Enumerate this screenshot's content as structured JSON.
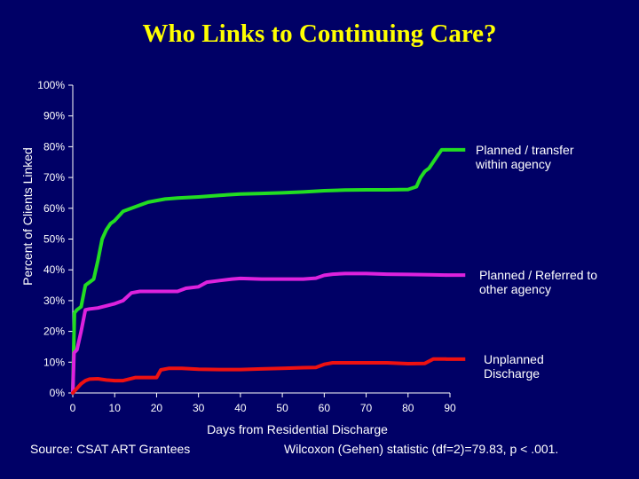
{
  "slide": {
    "title": "Who Links to Continuing Care?",
    "source_note": "Source: CSAT ART Grantees",
    "stat_note": "Wilcoxon (Gehen) statistic (df=2)=79.83, p < .001."
  },
  "chart_data": {
    "type": "line",
    "xlabel": "Days from Residential Discharge",
    "ylabel": "Percent of Clients Linked",
    "xlim": [
      0,
      90
    ],
    "ylim": [
      0,
      100
    ],
    "x_ticks": [
      0,
      10,
      20,
      30,
      40,
      50,
      60,
      70,
      80,
      90
    ],
    "x_tick_labels": [
      "0",
      "10",
      "20",
      "30",
      "40",
      "50",
      "60",
      "70",
      "80",
      "90"
    ],
    "y_ticks": [
      0,
      10,
      20,
      30,
      40,
      50,
      60,
      70,
      80,
      90,
      100
    ],
    "y_tick_labels": [
      "0%",
      "10%",
      "20%",
      "30%",
      "40%",
      "50%",
      "60%",
      "70%",
      "80%",
      "90%",
      "100%"
    ],
    "grid": false,
    "legend": "right, inline labels at line ends",
    "series": [
      {
        "name": "Planned / transfer within agency",
        "label_lines": [
          "Planned / transfer",
          "within agency"
        ],
        "color": "#22dd22",
        "points": [
          [
            0,
            0
          ],
          [
            0.4,
            26
          ],
          [
            1,
            27
          ],
          [
            2,
            28
          ],
          [
            3,
            35
          ],
          [
            4,
            36
          ],
          [
            5,
            37
          ],
          [
            6,
            43
          ],
          [
            7,
            50
          ],
          [
            8,
            53
          ],
          [
            9,
            55
          ],
          [
            10,
            56
          ],
          [
            12,
            59
          ],
          [
            14,
            60
          ],
          [
            16,
            61
          ],
          [
            18,
            62
          ],
          [
            20,
            62.5
          ],
          [
            22,
            63
          ],
          [
            25,
            63.3
          ],
          [
            30,
            63.7
          ],
          [
            35,
            64.2
          ],
          [
            40,
            64.6
          ],
          [
            45,
            64.8
          ],
          [
            50,
            65
          ],
          [
            55,
            65.3
          ],
          [
            60,
            65.7
          ],
          [
            65,
            65.9
          ],
          [
            70,
            66
          ],
          [
            75,
            66
          ],
          [
            80,
            66.1
          ],
          [
            82,
            67
          ],
          [
            83,
            70
          ],
          [
            84,
            72
          ],
          [
            85,
            73
          ],
          [
            86,
            75
          ],
          [
            87,
            77
          ],
          [
            88,
            79
          ],
          [
            89,
            79
          ]
        ]
      },
      {
        "name": "Planned / Referred to other agency",
        "label_lines": [
          "Planned / Referred to",
          "other agency"
        ],
        "color": "#dd22dd",
        "points": [
          [
            0,
            0
          ],
          [
            0.3,
            13
          ],
          [
            1,
            14
          ],
          [
            2,
            20
          ],
          [
            3,
            27
          ],
          [
            4,
            27.3
          ],
          [
            6,
            27.6
          ],
          [
            8,
            28.3
          ],
          [
            10,
            29
          ],
          [
            12,
            30
          ],
          [
            14,
            32.5
          ],
          [
            16,
            33
          ],
          [
            20,
            33
          ],
          [
            25,
            33
          ],
          [
            27,
            34
          ],
          [
            30,
            34.5
          ],
          [
            32,
            36
          ],
          [
            35,
            36.5
          ],
          [
            38,
            37
          ],
          [
            40,
            37.2
          ],
          [
            45,
            37
          ],
          [
            50,
            37
          ],
          [
            55,
            37
          ],
          [
            58,
            37.3
          ],
          [
            60,
            38.2
          ],
          [
            62,
            38.6
          ],
          [
            65,
            38.8
          ],
          [
            70,
            38.8
          ],
          [
            75,
            38.6
          ],
          [
            80,
            38.5
          ],
          [
            85,
            38.4
          ],
          [
            89,
            38.3
          ]
        ]
      },
      {
        "name": "Unplanned Discharge",
        "label_lines": [
          "Unplanned",
          "Discharge"
        ],
        "color": "#ee1111",
        "points": [
          [
            0,
            0
          ],
          [
            1,
            1.5
          ],
          [
            2,
            3
          ],
          [
            3,
            4
          ],
          [
            4,
            4.5
          ],
          [
            6,
            4.6
          ],
          [
            8,
            4.2
          ],
          [
            10,
            4
          ],
          [
            12,
            4
          ],
          [
            15,
            5
          ],
          [
            20,
            5
          ],
          [
            21,
            7.5
          ],
          [
            23,
            8
          ],
          [
            26,
            8
          ],
          [
            30,
            7.7
          ],
          [
            35,
            7.6
          ],
          [
            40,
            7.6
          ],
          [
            45,
            7.8
          ],
          [
            50,
            8
          ],
          [
            55,
            8.2
          ],
          [
            58,
            8.3
          ],
          [
            60,
            9.3
          ],
          [
            62,
            9.8
          ],
          [
            65,
            9.8
          ],
          [
            70,
            9.8
          ],
          [
            75,
            9.8
          ],
          [
            80,
            9.5
          ],
          [
            84,
            9.6
          ],
          [
            86,
            11
          ],
          [
            89,
            11
          ]
        ]
      }
    ]
  }
}
